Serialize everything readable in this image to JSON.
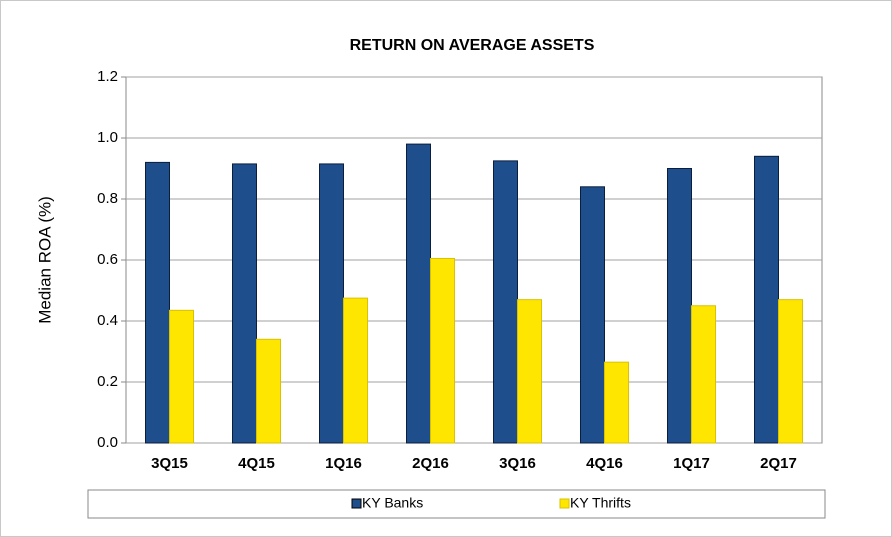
{
  "chart_data": {
    "type": "bar",
    "title": "RETURN ON AVERAGE ASSETS",
    "y_label": "Median ROA (%)",
    "categories": [
      "3Q15",
      "4Q15",
      "1Q16",
      "2Q16",
      "3Q16",
      "4Q16",
      "1Q17",
      "2Q17"
    ],
    "series": [
      {
        "name": "KY Banks",
        "color": "#1f4e8c",
        "values": [
          0.92,
          0.915,
          0.915,
          0.98,
          0.925,
          0.84,
          0.9,
          0.94
        ]
      },
      {
        "name": "KY Thrifts",
        "color": "#ffe600",
        "values": [
          0.435,
          0.34,
          0.475,
          0.605,
          0.47,
          0.265,
          0.45,
          0.47
        ]
      }
    ],
    "ylim": [
      0,
      1.2
    ],
    "yticks": [
      {
        "value": 0,
        "label": "0.0"
      },
      0.2,
      0.4,
      0.6,
      0.8,
      {
        "value": 1,
        "label": "1.0"
      },
      1.2
    ],
    "grid": true,
    "legend": "bottom"
  }
}
